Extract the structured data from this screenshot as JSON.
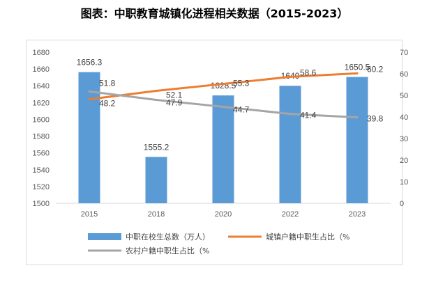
{
  "chart_data": {
    "type": "bar+line",
    "title": "图表：中职教育城镇化进程相关数据（2015-2023）",
    "categories": [
      "2015",
      "2018",
      "2020",
      "2022",
      "2023"
    ],
    "bar_series": {
      "name": "中职在校生总数（万人）",
      "values": [
        1656.3,
        1555.2,
        1628.5,
        1640,
        1650.5
      ],
      "labels": [
        "1656.3",
        "1555.2",
        "1628.5",
        "1640",
        "1650.5"
      ],
      "color": "#5b9bd5",
      "axis": "left"
    },
    "line_series": [
      {
        "name": "城镇户籍中职生占比（%",
        "values": [
          48.2,
          52.1,
          55.3,
          58.6,
          60.2
        ],
        "labels": [
          "48.2",
          "52.1",
          "55.3",
          "58.6",
          "60.2"
        ],
        "color": "#ed7d31",
        "axis": "right"
      },
      {
        "name": "农村户籍中职生占比（%",
        "values": [
          51.8,
          47.9,
          44.7,
          41.4,
          39.8
        ],
        "labels": [
          "51.8",
          "47.9",
          "44.7",
          "41.4",
          "39.8"
        ],
        "color": "#a5a5a5",
        "axis": "right"
      }
    ],
    "left_axis": {
      "ylim": [
        1500,
        1680
      ],
      "ticks": [
        "1500",
        "1520",
        "1540",
        "1560",
        "1580",
        "1600",
        "1620",
        "1640",
        "1660",
        "1680"
      ]
    },
    "right_axis": {
      "ylim": [
        0,
        70
      ],
      "ticks": [
        "0",
        "10",
        "20",
        "30",
        "40",
        "50",
        "60",
        "70"
      ]
    },
    "grid": false,
    "legend": "bottom"
  }
}
